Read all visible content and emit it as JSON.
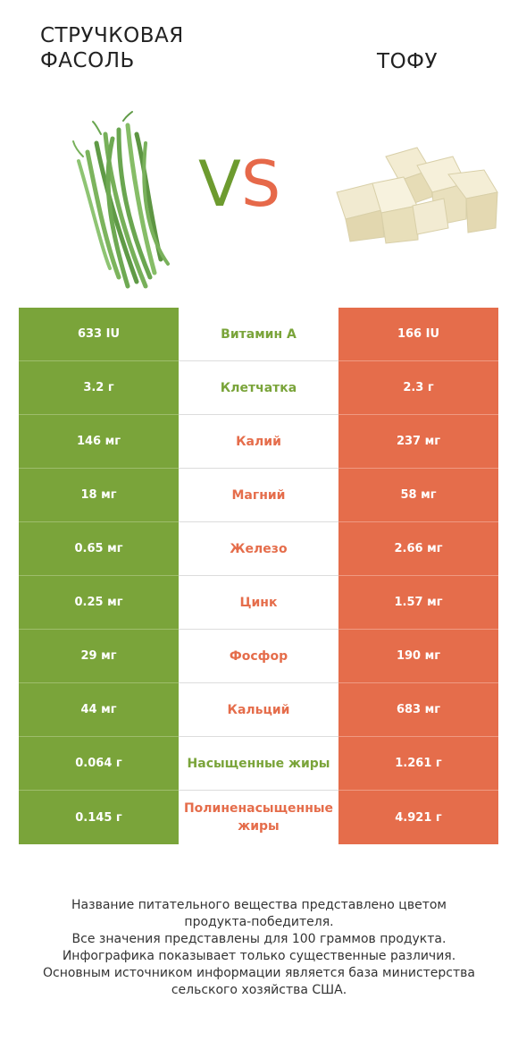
{
  "header": {
    "left_title_line1": "СТРУЧКОВАЯ",
    "left_title_line2": "ФАСОЛЬ",
    "right_title": "ТОФУ",
    "vs_v": "V",
    "vs_s": "S"
  },
  "colors": {
    "left_winner": "#7aa43a",
    "right_winner": "#e56d4b"
  },
  "images": {
    "left": "green-beans-image",
    "right": "tofu-cubes-image"
  },
  "rows": [
    {
      "left": "633 IU",
      "nutrient": "Витамин A",
      "right": "166 IU",
      "winner": "left"
    },
    {
      "left": "3.2 г",
      "nutrient": "Клетчатка",
      "right": "2.3 г",
      "winner": "left"
    },
    {
      "left": "146 мг",
      "nutrient": "Калий",
      "right": "237 мг",
      "winner": "right"
    },
    {
      "left": "18 мг",
      "nutrient": "Магний",
      "right": "58 мг",
      "winner": "right"
    },
    {
      "left": "0.65 мг",
      "nutrient": "Железо",
      "right": "2.66 мг",
      "winner": "right"
    },
    {
      "left": "0.25 мг",
      "nutrient": "Цинк",
      "right": "1.57 мг",
      "winner": "right"
    },
    {
      "left": "29 мг",
      "nutrient": "Фосфор",
      "right": "190 мг",
      "winner": "right"
    },
    {
      "left": "44 мг",
      "nutrient": "Кальций",
      "right": "683 мг",
      "winner": "right"
    },
    {
      "left": "0.064 г",
      "nutrient": "Насыщенные жиры",
      "right": "1.261 г",
      "winner": "left"
    },
    {
      "left": "0.145 г",
      "nutrient": "Полиненасыщенные жиры",
      "right": "4.921 г",
      "winner": "right"
    }
  ],
  "footer": {
    "line1": "Название питательного вещества представлено цветом",
    "line2": "продукта-победителя.",
    "line3": "Все значения представлены для 100 граммов продукта.",
    "line4": "Инфографика показывает только существенные различия.",
    "line5": "Основным источником информации является база министерства",
    "line6": "сельского хозяйства США."
  }
}
